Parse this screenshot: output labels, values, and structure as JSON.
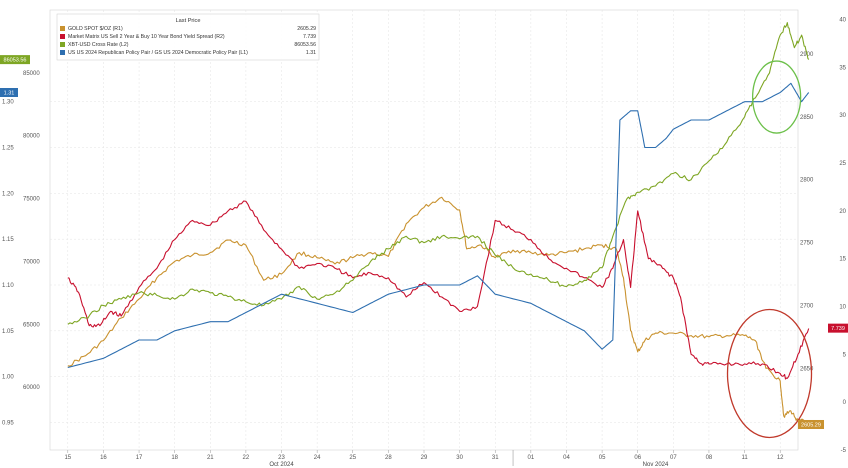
{
  "chart_data": {
    "type": "line",
    "legend": {
      "header": "Last Price",
      "placement": "top-left",
      "entries": [
        {
          "name": "GOLD SPOT $/OZ  (R1)",
          "value": "2605.29",
          "color": "#c9922f"
        },
        {
          "name": "Market Matrix US Sell 2 Year & Buy 10 Year Bond Yield Spread  (R2)",
          "value": "7.739",
          "color": "#c8102e"
        },
        {
          "name": "XBT-USD Cross Rate  (L2)",
          "value": "86053.56",
          "color": "#7ea624"
        },
        {
          "name": "US US 2024 Republican Policy Pair / GS US 2024 Democratic Policy Pair  (L1)",
          "value": "1.31",
          "color": "#2e6fb0"
        }
      ]
    },
    "x_axis": {
      "day_labels": [
        "15",
        "16",
        "17",
        "18",
        "21",
        "22",
        "23",
        "24",
        "25",
        "28",
        "29",
        "30",
        "31",
        "01",
        "04",
        "05",
        "06",
        "07",
        "08",
        "11",
        "12"
      ],
      "month_labels": [
        "Oct 2024",
        "Nov 2024"
      ]
    },
    "y_left_l1": {
      "range": [
        0.92,
        1.4
      ],
      "ticks": [
        "1.30",
        "1.25",
        "1.20",
        "1.15",
        "1.10",
        "1.05",
        "1.00",
        "0.95"
      ],
      "values": [
        1.3,
        1.25,
        1.2,
        1.15,
        1.1,
        1.05,
        1.0,
        0.95
      ]
    },
    "y_left_l2": {
      "range": [
        55000,
        90000
      ],
      "ticks": [
        "85000",
        "80000",
        "75000",
        "70000",
        "65000",
        "60000"
      ],
      "values": [
        85000,
        80000,
        75000,
        70000,
        65000,
        60000
      ]
    },
    "y_right_r1": {
      "range": [
        2585,
        2935
      ],
      "ticks": [
        "2900",
        "2850",
        "2800",
        "2750",
        "2700",
        "2650"
      ],
      "values": [
        2900,
        2850,
        2800,
        2750,
        2700,
        2650
      ]
    },
    "y_right_r2": {
      "range": [
        -5,
        41
      ],
      "ticks": [
        "40",
        "35",
        "30",
        "25",
        "20",
        "15",
        "10",
        "5",
        "0",
        "-5"
      ],
      "values": [
        40,
        35,
        30,
        25,
        20,
        15,
        10,
        5,
        0,
        -5
      ]
    },
    "last_value_tags": [
      {
        "label": "1.31",
        "axis": "y_left_l1",
        "value": 1.31,
        "color": "#2e6fb0"
      },
      {
        "label": "86053.56",
        "axis": "y_left_l2",
        "value": 86053.56,
        "color": "#7ea624"
      },
      {
        "label": "7.739",
        "axis": "y_right_r2",
        "value": 7.739,
        "color": "#c8102e"
      },
      {
        "label": "2605.29",
        "axis": "y_right_r1",
        "value": 2605.29,
        "color": "#c9922f"
      }
    ],
    "series": [
      {
        "name": "GOLD SPOT $/OZ",
        "axis": "y_right_r1",
        "color": "#c9922f",
        "points": [
          [
            0,
            2652
          ],
          [
            0.5,
            2660
          ],
          [
            1.0,
            2672
          ],
          [
            1.5,
            2690
          ],
          [
            2.0,
            2705
          ],
          [
            2.5,
            2722
          ],
          [
            3.0,
            2735
          ],
          [
            3.5,
            2740
          ],
          [
            4.0,
            2742
          ],
          [
            4.5,
            2752
          ],
          [
            5.0,
            2748
          ],
          [
            5.5,
            2720
          ],
          [
            6.0,
            2725
          ],
          [
            6.5,
            2742
          ],
          [
            7.0,
            2738
          ],
          [
            7.5,
            2733
          ],
          [
            8.0,
            2738
          ],
          [
            8.5,
            2742
          ],
          [
            9.0,
            2739
          ],
          [
            9.5,
            2765
          ],
          [
            10.0,
            2778
          ],
          [
            10.5,
            2786
          ],
          [
            11.0,
            2776
          ],
          [
            11.2,
            2745
          ],
          [
            11.6,
            2748
          ],
          [
            12.0,
            2738
          ],
          [
            12.5,
            2744
          ],
          [
            13.0,
            2742
          ],
          [
            13.5,
            2740
          ],
          [
            14.0,
            2742
          ],
          [
            14.5,
            2745
          ],
          [
            15.0,
            2748
          ],
          [
            15.4,
            2745
          ],
          [
            15.6,
            2722
          ],
          [
            15.8,
            2680
          ],
          [
            16.0,
            2663
          ],
          [
            16.2,
            2672
          ],
          [
            16.5,
            2678
          ],
          [
            17.0,
            2678
          ],
          [
            17.5,
            2676
          ],
          [
            18.0,
            2675
          ],
          [
            18.5,
            2676
          ],
          [
            19.0,
            2676
          ],
          [
            19.3,
            2672
          ],
          [
            19.6,
            2650
          ],
          [
            20.0,
            2640
          ],
          [
            20.1,
            2612
          ],
          [
            20.3,
            2616
          ],
          [
            20.5,
            2608
          ],
          [
            20.8,
            2608
          ]
        ]
      },
      {
        "name": "Market Matrix US Sell 2 Year & Buy 10 Year Bond Yield Spread",
        "axis": "y_right_r2",
        "color": "#c8102e",
        "points": [
          [
            0,
            13.0
          ],
          [
            0.3,
            11.5
          ],
          [
            0.6,
            8.0
          ],
          [
            0.9,
            8.0
          ],
          [
            1.2,
            9.5
          ],
          [
            1.5,
            9.0
          ],
          [
            2.0,
            12.0
          ],
          [
            2.5,
            14.0
          ],
          [
            3.0,
            17.0
          ],
          [
            3.5,
            19.0
          ],
          [
            4.0,
            18.5
          ],
          [
            4.5,
            20.0
          ],
          [
            5.0,
            21.0
          ],
          [
            5.5,
            18.0
          ],
          [
            6.0,
            16.0
          ],
          [
            6.5,
            14.0
          ],
          [
            7.0,
            14.5
          ],
          [
            7.5,
            14.0
          ],
          [
            8.0,
            13.0
          ],
          [
            8.5,
            13.5
          ],
          [
            9.0,
            13.0
          ],
          [
            9.5,
            11.0
          ],
          [
            10.0,
            12.5
          ],
          [
            10.5,
            11.0
          ],
          [
            11.0,
            9.5
          ],
          [
            11.5,
            10.0
          ],
          [
            12.0,
            19.0
          ],
          [
            12.5,
            18.0
          ],
          [
            13.0,
            17.0
          ],
          [
            13.5,
            15.0
          ],
          [
            14.0,
            14.0
          ],
          [
            14.5,
            13.0
          ],
          [
            15.0,
            12.0
          ],
          [
            15.3,
            14.0
          ],
          [
            15.6,
            17.0
          ],
          [
            15.8,
            12.0
          ],
          [
            16.0,
            20.0
          ],
          [
            16.3,
            15.0
          ],
          [
            16.7,
            14.0
          ],
          [
            17.0,
            13.0
          ],
          [
            17.2,
            11.0
          ],
          [
            17.5,
            5.0
          ],
          [
            17.8,
            4.0
          ],
          [
            18.0,
            4.0
          ],
          [
            18.5,
            4.0
          ],
          [
            19.0,
            4.0
          ],
          [
            19.5,
            4.0
          ],
          [
            20.0,
            3.0
          ],
          [
            20.2,
            2.5
          ],
          [
            20.5,
            5.0
          ],
          [
            20.8,
            7.7
          ]
        ]
      },
      {
        "name": "XBT-USD Cross Rate",
        "axis": "y_left_l2",
        "color": "#7ea624",
        "points": [
          [
            0,
            65000
          ],
          [
            0.5,
            65500
          ],
          [
            1.0,
            66500
          ],
          [
            1.5,
            67000
          ],
          [
            2.0,
            67500
          ],
          [
            2.5,
            67300
          ],
          [
            3.0,
            67000
          ],
          [
            3.5,
            67800
          ],
          [
            4.0,
            67500
          ],
          [
            4.5,
            67200
          ],
          [
            5.0,
            66800
          ],
          [
            5.5,
            66500
          ],
          [
            6.0,
            67000
          ],
          [
            6.5,
            68000
          ],
          [
            7.0,
            67000
          ],
          [
            7.5,
            67500
          ],
          [
            8.0,
            68500
          ],
          [
            8.5,
            70000
          ],
          [
            9.0,
            71000
          ],
          [
            9.5,
            72000
          ],
          [
            10.0,
            71500
          ],
          [
            10.5,
            72000
          ],
          [
            11.0,
            71800
          ],
          [
            11.5,
            72000
          ],
          [
            12.0,
            70500
          ],
          [
            12.5,
            69500
          ],
          [
            13.0,
            69000
          ],
          [
            13.5,
            68500
          ],
          [
            14.0,
            68000
          ],
          [
            14.5,
            68500
          ],
          [
            15.0,
            69500
          ],
          [
            15.3,
            72000
          ],
          [
            15.7,
            75000
          ],
          [
            16.0,
            75500
          ],
          [
            16.5,
            76000
          ],
          [
            17.0,
            77000
          ],
          [
            17.5,
            76500
          ],
          [
            18.0,
            78000
          ],
          [
            18.5,
            79500
          ],
          [
            19.0,
            81500
          ],
          [
            19.3,
            83000
          ],
          [
            19.7,
            85000
          ],
          [
            20.0,
            88000
          ],
          [
            20.2,
            89000
          ],
          [
            20.4,
            87000
          ],
          [
            20.6,
            88000
          ],
          [
            20.8,
            86053
          ]
        ]
      },
      {
        "name": "US US 2024 Republican Policy Pair / GS US 2024 Democratic Policy Pair",
        "axis": "y_left_l1",
        "color": "#2e6fb0",
        "points": [
          [
            0,
            1.01
          ],
          [
            1.0,
            1.02
          ],
          [
            1.5,
            1.03
          ],
          [
            2.0,
            1.04
          ],
          [
            2.5,
            1.04
          ],
          [
            3.0,
            1.05
          ],
          [
            4.0,
            1.06
          ],
          [
            4.5,
            1.06
          ],
          [
            5.0,
            1.07
          ],
          [
            5.5,
            1.08
          ],
          [
            6.0,
            1.09
          ],
          [
            7.0,
            1.08
          ],
          [
            8.0,
            1.07
          ],
          [
            8.5,
            1.08
          ],
          [
            9.0,
            1.09
          ],
          [
            10.0,
            1.1
          ],
          [
            11.0,
            1.1
          ],
          [
            11.5,
            1.11
          ],
          [
            12.0,
            1.09
          ],
          [
            13.0,
            1.08
          ],
          [
            13.5,
            1.07
          ],
          [
            14.0,
            1.06
          ],
          [
            14.5,
            1.05
          ],
          [
            15.0,
            1.03
          ],
          [
            15.3,
            1.04
          ],
          [
            15.5,
            1.28
          ],
          [
            15.8,
            1.29
          ],
          [
            16.0,
            1.29
          ],
          [
            16.2,
            1.25
          ],
          [
            16.5,
            1.25
          ],
          [
            16.8,
            1.26
          ],
          [
            17.0,
            1.27
          ],
          [
            17.5,
            1.28
          ],
          [
            18.0,
            1.28
          ],
          [
            18.5,
            1.29
          ],
          [
            19.0,
            1.3
          ],
          [
            19.5,
            1.3
          ],
          [
            20.0,
            1.31
          ],
          [
            20.3,
            1.32
          ],
          [
            20.6,
            1.3
          ],
          [
            20.8,
            1.31
          ]
        ]
      }
    ],
    "annotations": [
      {
        "shape": "ellipse",
        "color": "#6cc04a",
        "center": {
          "x": 19.9,
          "axis": "y_left_l1",
          "y": 1.305
        }
      },
      {
        "shape": "ellipse",
        "color": "#c0392b",
        "center": {
          "x": 19.7,
          "axis": "y_right_r2",
          "y": 3.0
        }
      }
    ]
  }
}
